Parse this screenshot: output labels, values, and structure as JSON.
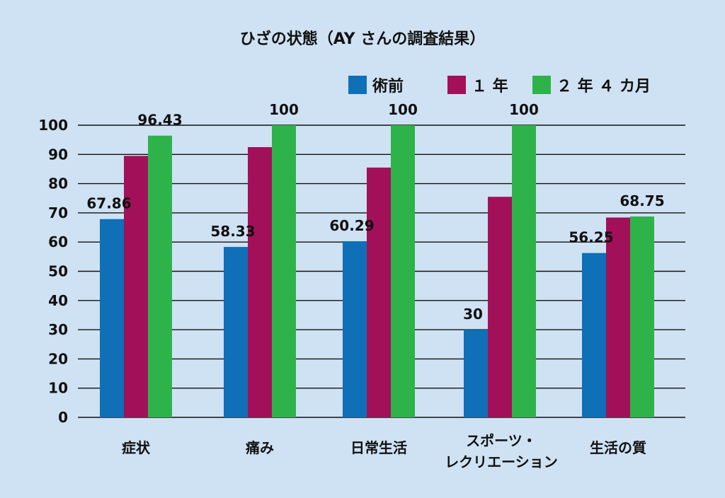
{
  "chart_data": {
    "type": "bar",
    "title": "ひざの状態（AY さんの調査結果）",
    "ylim": [
      0,
      100
    ],
    "yticks": [
      0,
      10,
      20,
      30,
      40,
      50,
      60,
      70,
      80,
      90,
      100
    ],
    "grid": true,
    "legend_position": "top-right",
    "categories": [
      [
        "症状"
      ],
      [
        "痛み"
      ],
      [
        "日常生活"
      ],
      [
        "スポーツ・",
        "レクリエーション"
      ],
      [
        "生活の質"
      ]
    ],
    "series": [
      {
        "name": "術前",
        "color": "#0f6fb7",
        "values": [
          67.86,
          58.33,
          60.29,
          30,
          56.25
        ]
      },
      {
        "name": "１ 年",
        "color": "#a3105a",
        "values": [
          89.5,
          92.5,
          85.5,
          75.5,
          68.4
        ]
      },
      {
        "name": "２ 年 ４ カ月",
        "color": "#2db34a",
        "values": [
          96.43,
          100,
          100,
          100,
          68.75
        ]
      }
    ],
    "data_labels": [
      {
        "category": 0,
        "series": 0,
        "text": "67.86"
      },
      {
        "category": 0,
        "series": 2,
        "text": "96.43"
      },
      {
        "category": 1,
        "series": 0,
        "text": "58.33"
      },
      {
        "category": 1,
        "series": 2,
        "text": "100"
      },
      {
        "category": 2,
        "series": 0,
        "text": "60.29"
      },
      {
        "category": 2,
        "series": 2,
        "text": "100"
      },
      {
        "category": 3,
        "series": 0,
        "text": "30"
      },
      {
        "category": 3,
        "series": 2,
        "text": "100"
      },
      {
        "category": 4,
        "series": 0,
        "text": "56.25"
      },
      {
        "category": 4,
        "series": 2,
        "text": "68.75"
      }
    ]
  }
}
